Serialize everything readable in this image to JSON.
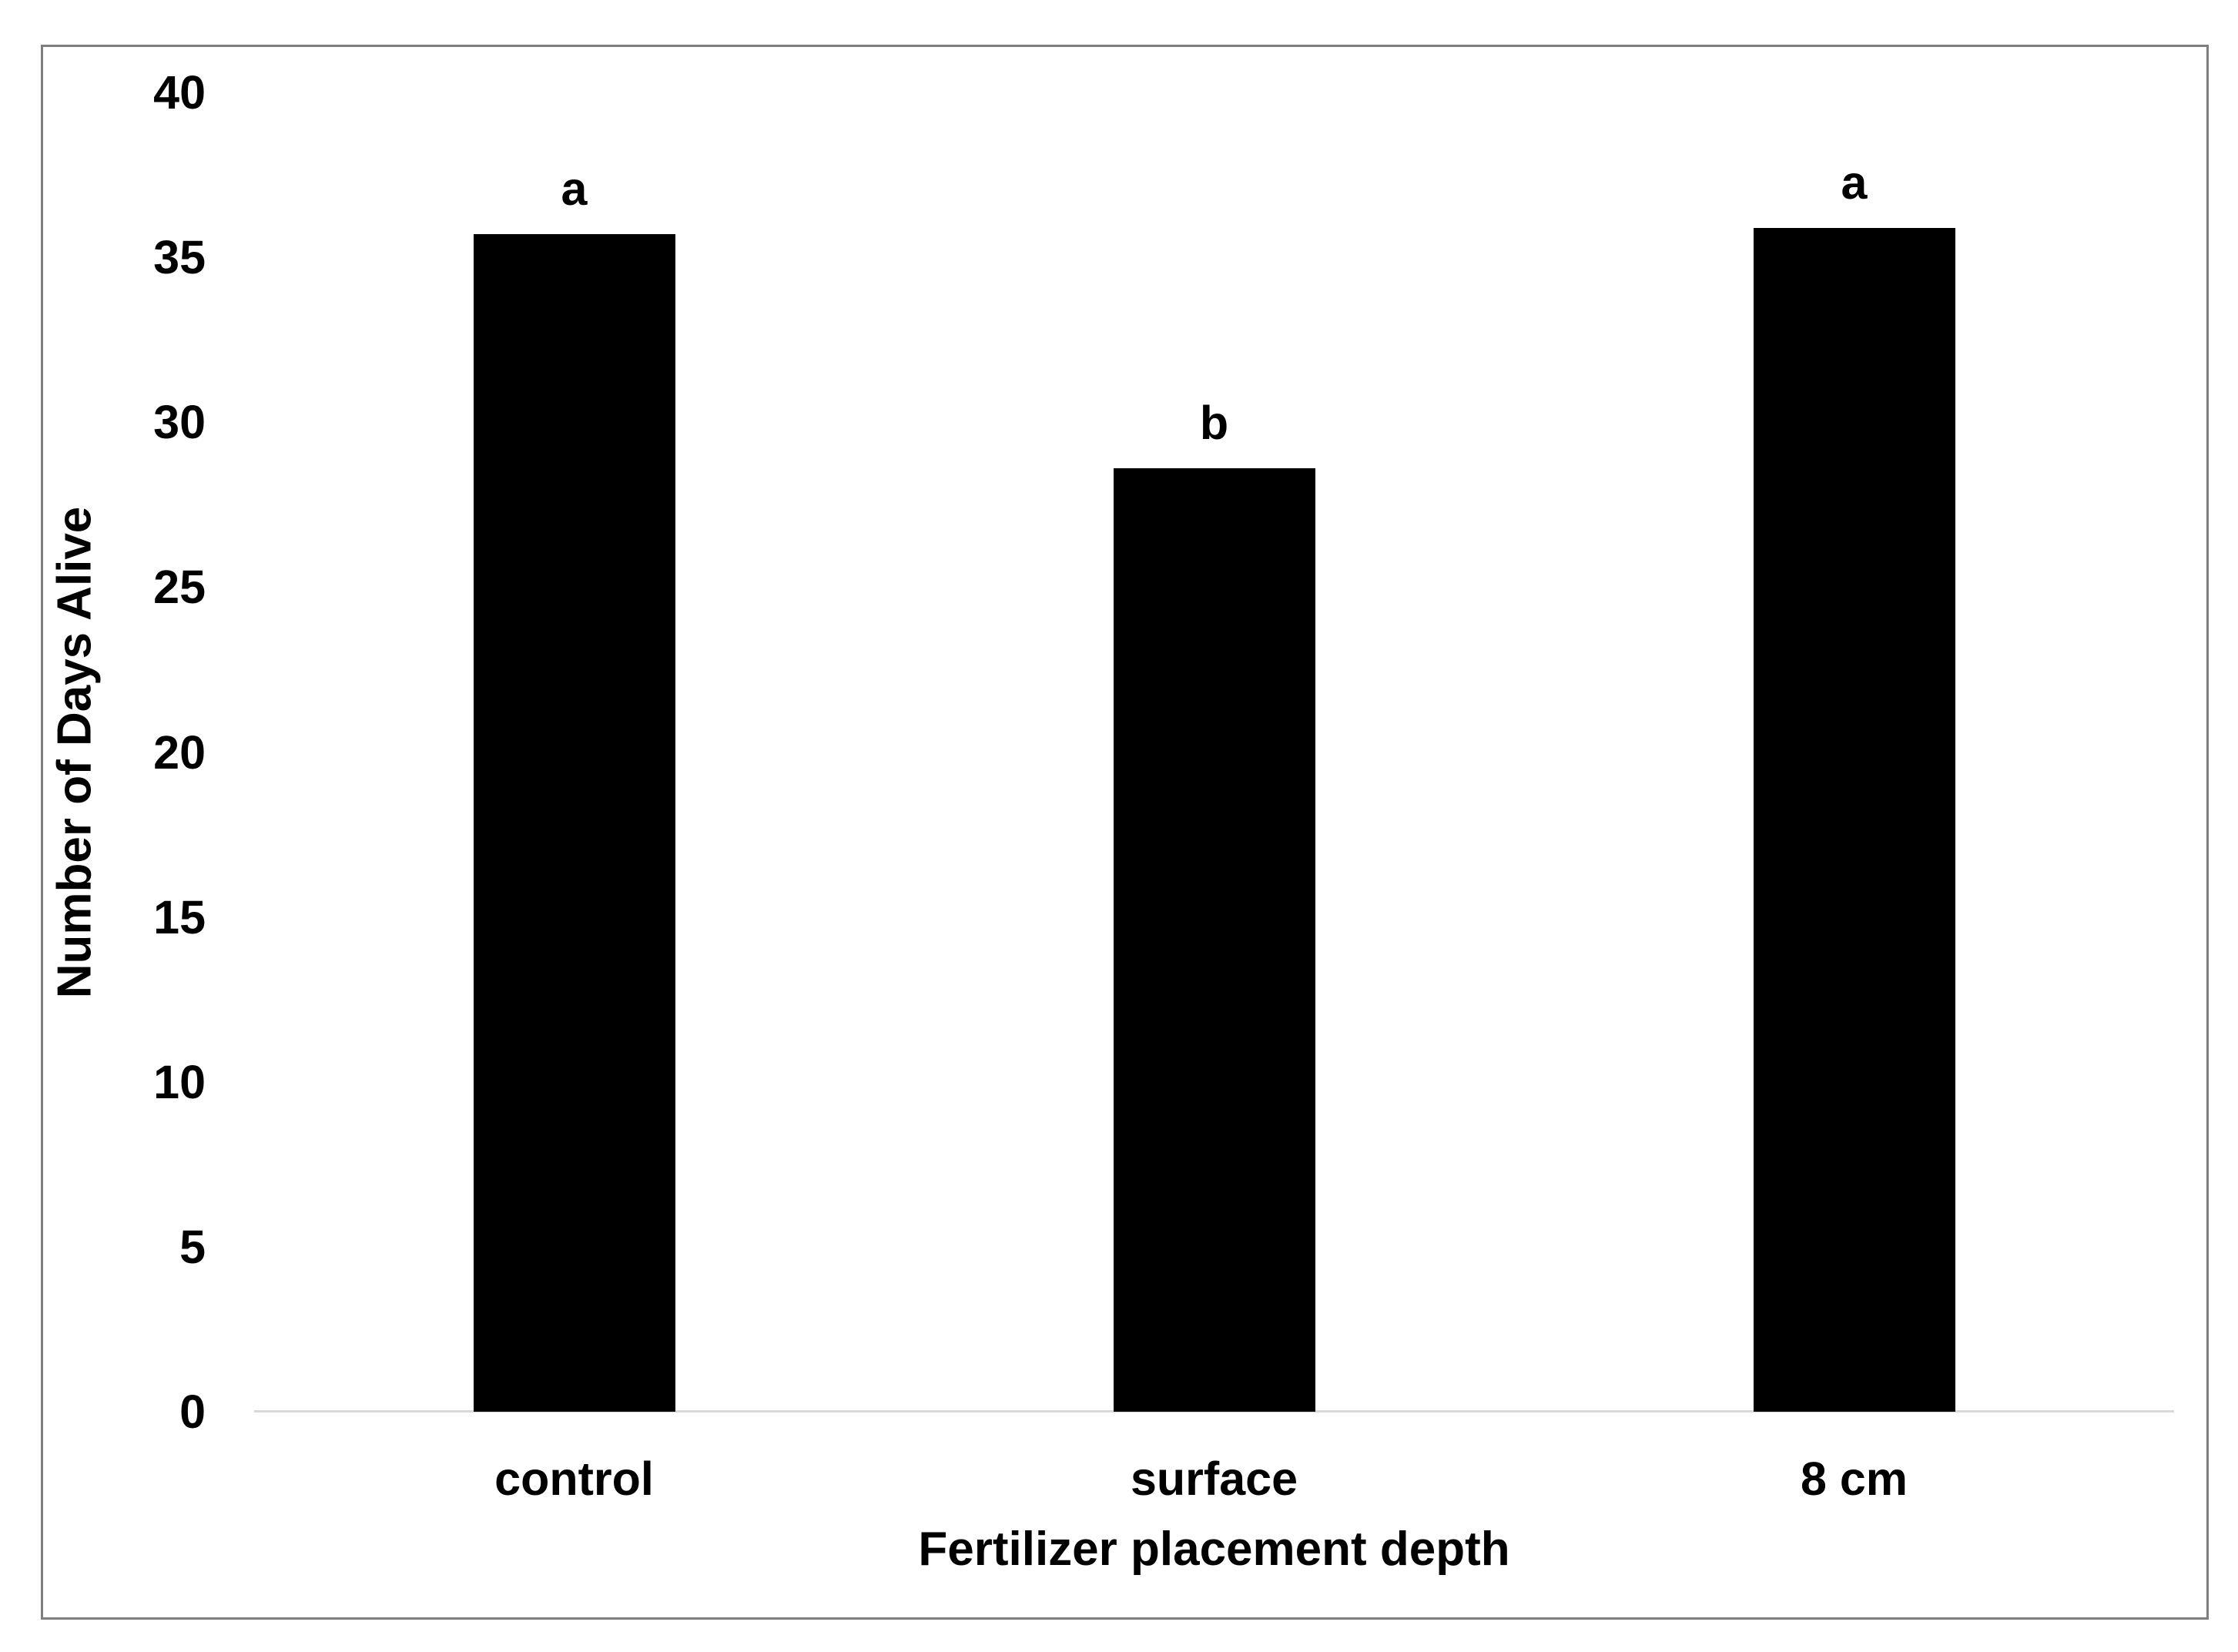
{
  "chart_data": {
    "type": "bar",
    "categories": [
      "control",
      "surface",
      "8 cm"
    ],
    "values": [
      35.7,
      28.6,
      35.9
    ],
    "bar_labels": [
      "a",
      "b",
      "a"
    ],
    "title": "",
    "xlabel": "Fertilizer placement depth",
    "ylabel": "Number of Days Alive",
    "ylim": [
      0,
      40
    ],
    "yticks": [
      40,
      35,
      30,
      25,
      20,
      15,
      10,
      5,
      0
    ],
    "grid": "off",
    "legend": "none",
    "bar_color": "#000000",
    "axis_line_color": "#d9d9d9",
    "frame_color": "#7f7f7f",
    "text_color": "#000000"
  }
}
